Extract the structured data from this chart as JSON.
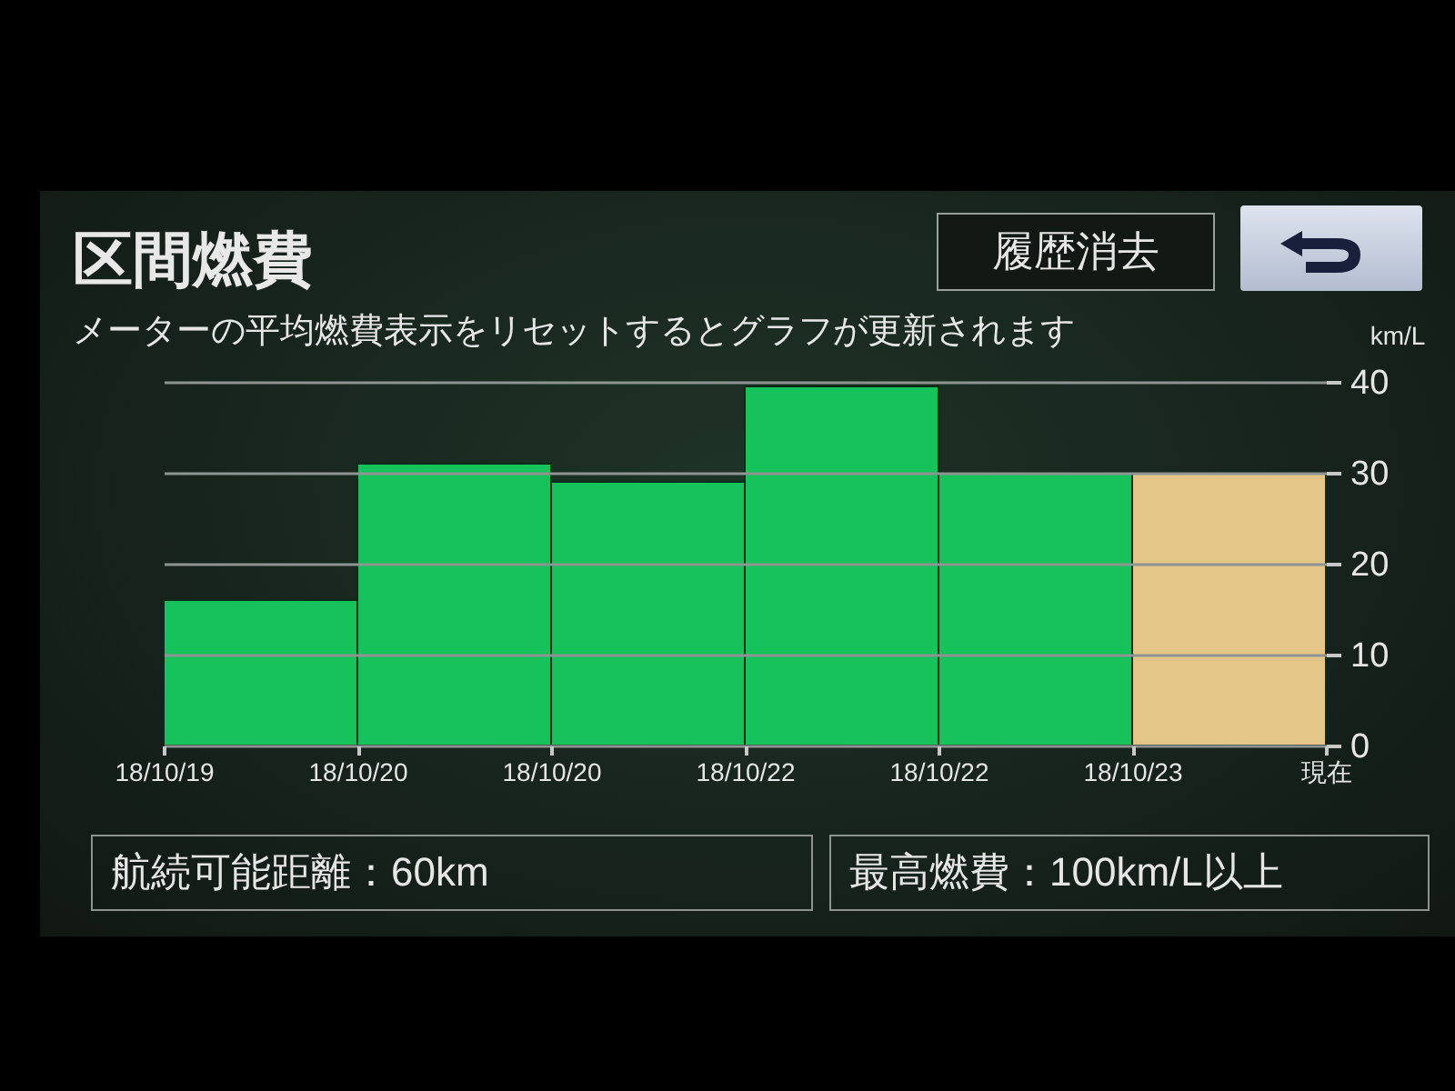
{
  "chart_data": {
    "type": "bar",
    "title": "区間燃費",
    "subtitle": "メーターの平均燃費表示をリセットするとグラフが更新されます",
    "ylabel": "km/L",
    "categories": [
      "18/10/19",
      "18/10/20",
      "18/10/20",
      "18/10/22",
      "18/10/22",
      "18/10/23",
      "現在"
    ],
    "values": [
      16,
      31,
      29,
      39.5,
      30,
      30,
      null
    ],
    "colors": [
      "#16c35a",
      "#16c35a",
      "#16c35a",
      "#16c35a",
      "#16c35a",
      "#e3c688",
      null
    ],
    "ylim": [
      0,
      40
    ],
    "yticks": [
      0,
      10,
      20,
      30,
      40
    ],
    "grid": "y",
    "annotations": [
      "履歴消去",
      "航続可能距離：60km",
      "最高燃費：100km/L以上"
    ]
  }
}
